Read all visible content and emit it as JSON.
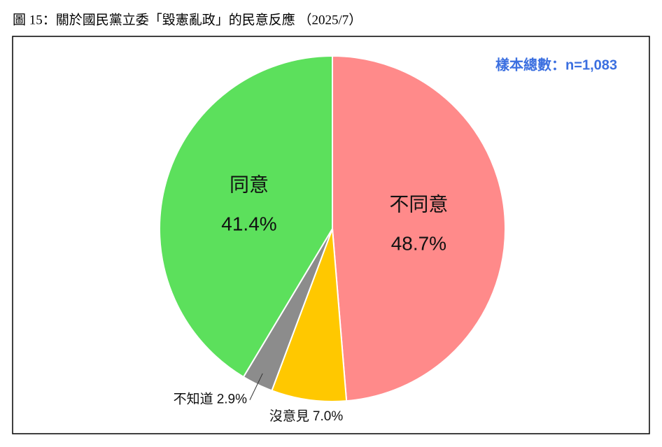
{
  "chart_data": {
    "type": "pie",
    "title": "圖 15：關於國民黨立委「毀憲亂政」的民意反應 （2025/7）",
    "annotation": "樣本總數：n=1,083",
    "categories": [
      "不同意",
      "沒意見",
      "不知道",
      "同意"
    ],
    "values": [
      48.7,
      7.0,
      2.9,
      41.4
    ],
    "value_labels": [
      "48.7%",
      "7.0%",
      "2.9%",
      "41.4%"
    ],
    "colors": [
      "#ff8a8a",
      "#ffc800",
      "#8c8c8c",
      "#5ce05c"
    ],
    "start_angle": 0,
    "direction": "clockwise",
    "inside_labels": [
      true,
      false,
      false,
      true
    ]
  }
}
